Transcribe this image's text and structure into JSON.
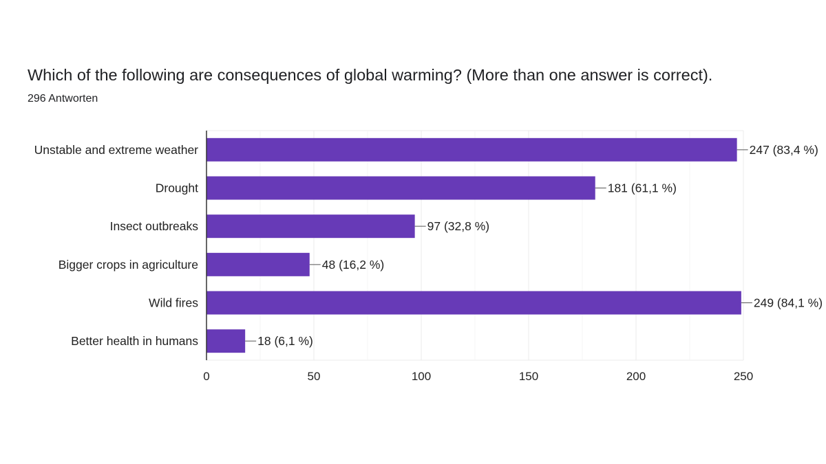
{
  "question": {
    "title": "Which of the following are consequences of global warming? (More than one answer is correct).",
    "responses": "296 Antworten"
  },
  "colors": {
    "bar": "#673ab7",
    "gridline": "#ebebeb",
    "axis": "#333333",
    "leader": "#555555"
  },
  "chart_data": {
    "type": "bar",
    "orientation": "horizontal",
    "categories": [
      "Unstable and extreme weather",
      "Drought",
      "Insect outbreaks",
      "Bigger crops in agriculture",
      "Wild fires",
      "Better health in humans"
    ],
    "values": [
      247,
      181,
      97,
      48,
      249,
      18
    ],
    "data_labels": [
      "247 (83,4 %)",
      "181 (61,1 %)",
      "97 (32,8 %)",
      "48 (16,2 %)",
      "249 (84,1 %)",
      "18 (6,1 %)"
    ],
    "xlim": [
      0,
      250
    ],
    "xticks": [
      0,
      50,
      100,
      150,
      200,
      250
    ],
    "grid": true,
    "legend": "none"
  }
}
